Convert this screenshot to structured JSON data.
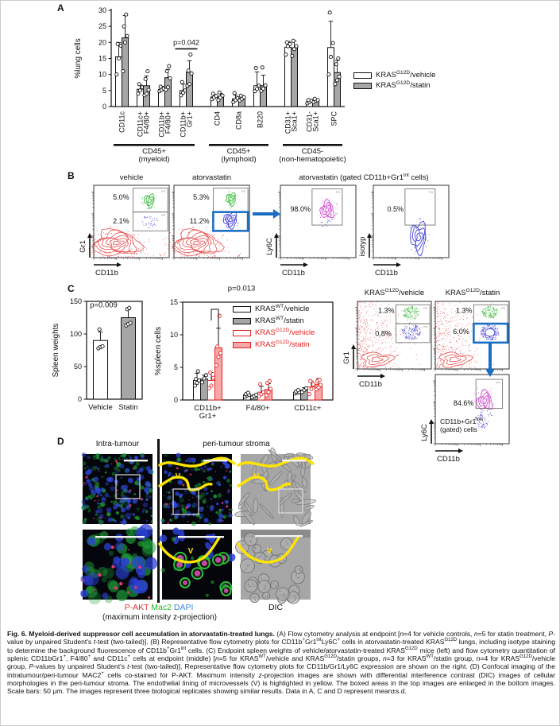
{
  "figure": {
    "caption_md": "**Fig. 6. Myeloid-derived suppressor cell accumulation in atorvastatin-treated lungs.** (A) Flow cytometry analysis at endpoint [*n*=4 for vehicle controls, *n*=5 for statin treatment, *P*-value by unpaired Student's *t*-test (two-tailed)]. (B) Representative flow cytometry plots for CD11b^{+}Gr1^{int}Ly6C^{+} cells in atorvastatin-treated KRAS^{G12D} lungs, including isotype staining to determine the background fluorescence of CD11b^{+}Gr1^{int} cells. (C) Endpoint spleen weights of vehicle/atorvastatin-treated KRAS^{G12D} mice (left) and flow cytometry quantitation of splenic CD11bGr1^{+}, F4/80^{+} and CD11c^{+} cells at endpoint (middle) [*n*=5 for KRAS^{WT}/vehicle and KRAS^{G12D}/statin groups, *n*=3 for KRAS^{WT}/statin group, *n*=4 for KRAS^{G12D}/vehicle group, *P*-values by unpaired Student's *t*-test (two-tailed)]. Representative flow cytometry plots for CD11b/Gr1/Ly6C expression are shown on the right. (D) Confocal imaging of the intratumour/peri-tumour MAC2^{+} cells co-stained for P-AKT. Maximum intensity *z*-projection images are shown with differential interference contrast (DIC) images of cellular morphologies in the peri-tumour stroma. The endothelial lining of microvessels (V) is highlighted in yellow. The boxed areas in the top images are enlarged in the bottom images. Scale bars: 50 μm. The images represent three biological replicates showing similar results. Data in A, C and D represent mean±s.d."
  },
  "colors": {
    "red": "#e32222",
    "pink": "#f8a8a8",
    "gray_bar": "#a6a6a6",
    "blue_accent": "#1a6fc4",
    "flow_red": "#e84040",
    "flow_green": "#28b428",
    "flow_blue": "#4646d8",
    "flow_magenta": "#cf4fd0",
    "vessel_yellow": "#ffe400"
  },
  "panelA": {
    "label": "A",
    "legend": [
      {
        "label_md": "KRAS^{G12D}/vehicle",
        "fill": "#ffffff",
        "border": "#111111",
        "text_color": "#111111"
      },
      {
        "label_md": "KRAS^{G12D}/statin",
        "fill": "#a6a6a6",
        "border": "#111111",
        "text_color": "#111111"
      }
    ]
  },
  "panelB": {
    "label": "B",
    "titles": [
      {
        "text_md": "vehicle"
      },
      {
        "text_md": "atorvastatin"
      },
      {
        "text_md": "atorvastatin (gated CD11b+Gr1^{int} cells)"
      }
    ],
    "plots": [
      {
        "id": "b1",
        "ylabel": "Gr1",
        "xlabel": "CD11b",
        "percents": [
          "5.0%",
          "2.1%"
        ],
        "gates": [
          "P2",
          "P3"
        ]
      },
      {
        "id": "b2",
        "percents": [
          "5.3%",
          "11.2%"
        ],
        "gates": [
          "P2",
          "P3"
        ],
        "highlight_gate": "P3"
      },
      {
        "id": "b3",
        "ylabel": "Ly6C",
        "xlabel": "CD11b",
        "percents": [
          "98.0%"
        ],
        "gates": [
          "P4"
        ]
      },
      {
        "id": "b4",
        "ylabel": "isotyp",
        "xlabel": "CD11b",
        "percents": [
          "0.5%"
        ],
        "gates": [
          "P4"
        ]
      }
    ]
  },
  "panelC": {
    "label": "C",
    "legend": [
      {
        "label_md": "KRAS^{WT}/vehicle",
        "fill": "#ffffff",
        "border": "#111111",
        "text_color": "#111111"
      },
      {
        "label_md": "KRAS^{WT}/statin",
        "fill": "#a6a6a6",
        "border": "#111111",
        "text_color": "#111111"
      },
      {
        "label_md": "KRAS^{G12D}/vehicle",
        "fill": "#ffffff",
        "border": "#e32222",
        "text_color": "#e32222"
      },
      {
        "label_md": "KRAS^{G12D}/statin",
        "fill": "#f8a8a8",
        "border": "#e32222",
        "text_color": "#e32222"
      }
    ],
    "flow_titles": [
      {
        "text_md": "KRAS^{G12D}/vehicle"
      },
      {
        "text_md": "KRAS^{G12D}/statin"
      }
    ],
    "flow_plots": [
      {
        "id": "c1",
        "ylabel": "Gr1",
        "xlabel": "CD11b",
        "percents": [
          "1.3%",
          "0.8%"
        ],
        "gates": [
          "P2",
          "P3"
        ]
      },
      {
        "id": "c2",
        "percents": [
          "1.3%",
          "6.0%"
        ],
        "gates": [
          "P2",
          "P3"
        ],
        "highlight_gate": "P3"
      },
      {
        "id": "c3",
        "ylabel": "Ly6C",
        "xlabel": "CD11b",
        "percents": [
          "84.6%"
        ],
        "gates": [
          "P4"
        ],
        "inside_label_lines_md": [
          "CD11b+Gr1^{low}",
          "(gated) cells"
        ]
      }
    ]
  },
  "panelD": {
    "label": "D",
    "col_headers": [
      "Intra-tumour",
      "peri-tumour stroma"
    ],
    "stains": [
      {
        "text": "P-AKT",
        "color": "#e23333"
      },
      {
        "text": "Mac2",
        "color": "#28b428"
      },
      {
        "text": "DAPI",
        "color": "#3f86e0"
      }
    ],
    "projection_note": "(maximum intensity z-projection)",
    "dic_label": "DIC",
    "vessel_label": "V"
  },
  "chart_data": [
    {
      "id": "chartA",
      "type": "bar",
      "title": "",
      "xlabel": "",
      "ylabel": "%lung cells",
      "ylim": [
        0,
        30
      ],
      "yticks": [
        0,
        5,
        10,
        15,
        20,
        25,
        30
      ],
      "grid": false,
      "legend_position": "right",
      "categories": [
        [
          "CD11c"
        ],
        [
          "CD11c+",
          "F4/80+"
        ],
        [
          "CD11b+",
          "F4/80+"
        ],
        [
          "CD11b+",
          "Gr1+"
        ],
        [
          "CD4"
        ],
        [
          "CD8a"
        ],
        [
          "B220"
        ],
        [
          "CD31+",
          "Sca1+"
        ],
        [
          "CD31-",
          "Sca1+"
        ],
        [
          "SPC"
        ]
      ],
      "groups": [
        {
          "label_lines": [
            "CD45+",
            "(myeloid)"
          ],
          "from": 0,
          "to": 3
        },
        {
          "label_lines": [
            "CD45+",
            "(lymphoid)"
          ],
          "from": 4,
          "to": 6
        },
        {
          "label_lines": [
            "CD45-",
            "(non-hematopoietic)"
          ],
          "from": 7,
          "to": 9
        }
      ],
      "series": [
        {
          "name_md": "KRAS^{G12D}/vehicle",
          "fill": "#ffffff",
          "stroke": "#111111",
          "point_color": "#111111",
          "values": [
            15.5,
            5.4,
            5.4,
            5.0,
            3.0,
            2.4,
            6.5,
            18.5,
            1.5,
            18.4
          ],
          "sd": [
            4.5,
            1.3,
            0.9,
            2.0,
            0.8,
            1.2,
            4.3,
            1.8,
            0.5,
            8.2
          ],
          "points": [
            [
              10,
              15,
              19,
              19.5
            ],
            [
              4,
              5,
              6,
              7
            ],
            [
              4.8,
              5.2,
              5.6,
              6.2
            ],
            [
              3.5,
              4.3,
              5,
              7.6
            ],
            [
              2.3,
              2.8,
              3.3,
              4
            ],
            [
              1.4,
              2,
              2.6,
              4.2
            ],
            [
              4.8,
              5.5,
              6.5,
              12
            ],
            [
              16.2,
              18.8,
              19.5,
              20
            ],
            [
              1,
              1.4,
              1.8,
              2
            ],
            [
              10,
              15.5,
              19.8,
              29.3
            ]
          ]
        },
        {
          "name_md": "KRAS^{G12D}/statin",
          "fill": "#a6a6a6",
          "stroke": "#111111",
          "point_color": "#111111",
          "values": [
            21.4,
            6.5,
            9.0,
            10.7,
            3.0,
            2.6,
            6.5,
            18.3,
            1.8,
            10.6
          ],
          "sd": [
            7.0,
            3.0,
            2.6,
            3.6,
            1.1,
            0.8,
            3.3,
            2.1,
            0.5,
            3.8
          ],
          "points": [
            [
              11,
              20,
              22,
              25,
              28.7
            ],
            [
              3.5,
              4,
              5.2,
              8.6,
              11
            ],
            [
              5.2,
              6,
              8.8,
              11,
              12.6
            ],
            [
              6.5,
              7,
              10.3,
              11.2,
              16.2
            ],
            [
              2,
              2.8,
              3.4,
              4.4
            ],
            [
              1.9,
              2.4,
              2.9,
              3.4
            ],
            [
              4.9,
              5.6,
              6.6,
              12.2
            ],
            [
              15.8,
              17.9,
              18.8,
              20.5
            ],
            [
              1.4,
              1.8,
              2,
              2.4
            ],
            [
              7,
              8.2,
              9.3,
              13.2,
              15
            ]
          ]
        }
      ],
      "annotations": [
        {
          "type": "hline",
          "ci": 3,
          "vy": 18,
          "half": 14,
          "text": "p=0.042"
        }
      ]
    },
    {
      "id": "chartSpleen",
      "type": "bar",
      "title": "",
      "xlabel": "",
      "ylabel": "Spleen weights",
      "ylim": [
        0,
        150
      ],
      "yticks": [
        0,
        50,
        100,
        150
      ],
      "grid": false,
      "categories": [
        [
          "Vehicle"
        ],
        [
          "Statin"
        ]
      ],
      "series": [
        {
          "name_md": "",
          "fills": [
            "#ffffff",
            "#a6a6a6"
          ],
          "stroke": "#111111",
          "point_color": "#111111",
          "values": [
            90,
            125
          ],
          "sd": [
            13,
            12
          ],
          "points": [
            [
              78,
              80,
              81,
              107
            ],
            [
              113,
              115,
              117,
              138,
              140
            ]
          ]
        }
      ],
      "annotations": [
        {
          "type": "text",
          "text": "p=0.009",
          "fx": 0.06,
          "vy": 141
        }
      ]
    },
    {
      "id": "chartSpleenCells",
      "type": "bar",
      "title": "",
      "xlabel": "",
      "ylabel": "%spleen cells",
      "ylim": [
        0,
        15
      ],
      "yticks": [
        0,
        5,
        10,
        15
      ],
      "grid": false,
      "legend_position": "inside-top-right",
      "categories": [
        [
          "CD11b+",
          "Gr1+"
        ],
        [
          "F4/80+"
        ],
        [
          "CD11c+"
        ]
      ],
      "series": [
        {
          "name_md": "KRAS^{WT}/vehicle",
          "fill": "#ffffff",
          "stroke": "#111111",
          "point_color": "#111111",
          "values": [
            3.0,
            0.8,
            1.2
          ],
          "sd": [
            1.1,
            0.3,
            0.3
          ],
          "points": [
            [
              2.2,
              2.6,
              3.0,
              3.2,
              4.4
            ],
            [
              0.5,
              0.7,
              0.8,
              0.9,
              1.1
            ],
            [
              1.0,
              1.1,
              1.2,
              1.3,
              1.5
            ]
          ]
        },
        {
          "name_md": "KRAS^{WT}/statin",
          "fill": "#a6a6a6",
          "stroke": "#111111",
          "point_color": "#111111",
          "values": [
            3.2,
            0.6,
            1.5
          ],
          "sd": [
            0.6,
            0.2,
            0.4
          ],
          "points": [
            [
              2.7,
              3.3,
              3.8
            ],
            [
              0.4,
              0.6,
              0.8
            ],
            [
              1.2,
              1.5,
              1.8
            ]
          ]
        },
        {
          "name_md": "KRAS^{G12D}/vehicle",
          "fill": "#ffffff",
          "stroke": "#e32222",
          "point_color": "#e32222",
          "values": [
            3.0,
            1.2,
            2.0
          ],
          "sd": [
            1.2,
            0.9,
            0.9
          ],
          "points": [
            [
              1.8,
              2.2,
              3.4,
              4.2
            ],
            [
              0.6,
              0.9,
              1.2,
              2.4
            ],
            [
              0.9,
              1.7,
              2.4,
              2.9
            ]
          ]
        },
        {
          "name_md": "KRAS^{G12D}/statin",
          "fill": "#f8a8a8",
          "stroke": "#e32222",
          "point_color": "#e32222",
          "values": [
            8.0,
            1.6,
            2.4
          ],
          "sd": [
            3.0,
            0.9,
            0.9
          ],
          "points": [
            [
              5.3,
              6.6,
              7.2,
              8.2,
              12.9
            ],
            [
              0.7,
              1.2,
              1.7,
              2.6,
              2.9
            ],
            [
              1.6,
              1.9,
              2.3,
              2.9,
              3.1
            ]
          ]
        }
      ],
      "annotations": [
        {
          "type": "text",
          "text": "p=0.013",
          "fx": 0.3,
          "vy": 16.8
        },
        {
          "type": "bracket",
          "ci": 0,
          "s1": 2,
          "s2": 3,
          "vy": 13.9,
          "vd1": 12.2,
          "vd2": 8.7
        }
      ]
    }
  ]
}
